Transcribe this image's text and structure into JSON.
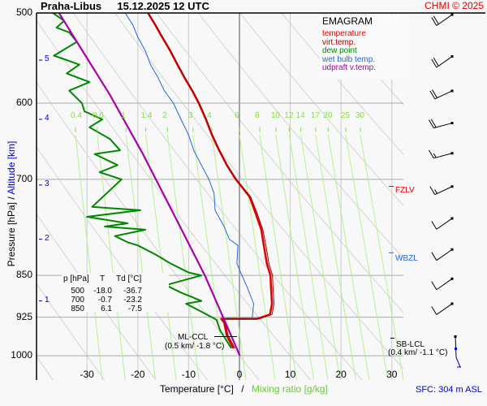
{
  "header": {
    "station": "Praha-Libus",
    "datetime": "15.12.2025 12 UTC",
    "copyright": "CHMI © 2025"
  },
  "legend": {
    "title": "EMAGRAM",
    "items": [
      {
        "label": "temperature",
        "color": "#e00000"
      },
      {
        "label": "virt.temp.",
        "color": "#990000"
      },
      {
        "label": "dew point",
        "color": "#008800"
      },
      {
        "label": "wet bulb temp.",
        "color": "#2266dd"
      },
      {
        "label": "udpraft v.temp.",
        "color": "#aa00aa"
      }
    ]
  },
  "axes": {
    "y_label_pressure": "Pressure [hPa]",
    "y_label_sep": "/",
    "y_label_altitude": "Altitude [km]",
    "x_label_temp": "Temperature [°C]",
    "x_label_sep": "/",
    "x_label_mixing": "Mixing ratio [g/kg]",
    "sfc_label": "SFC: 304 m ASL"
  },
  "table": {
    "headers": [
      "p [hPa]",
      "T",
      "Td [°C]"
    ],
    "rows": [
      [
        "500",
        "-18.0",
        "-36.7"
      ],
      [
        "700",
        "-0.7",
        "-23.2"
      ],
      [
        "850",
        "6.1",
        "-7.5"
      ]
    ]
  },
  "annotations": {
    "ml_ccl_name": "ML-CCL",
    "ml_ccl_value": "(0.5 km/ -1.8 °C)",
    "sb_lcl_name": "SB-LCL",
    "sb_lcl_value": "(0.4 km/ -1.1 °C)",
    "fzlv": "FZLV",
    "wbzl": "WBZL"
  },
  "chart_data": {
    "type": "line",
    "title": "Praha-Libus 15.12.2025 12 UTC",
    "subtitle": "EMAGRAM",
    "xlabel": "Temperature [°C] / Mixing ratio [g/kg]",
    "ylabel": "Pressure [hPa] / Altitude [km]",
    "xlim": [
      -38,
      32
    ],
    "ylim": [
      1050,
      500
    ],
    "y_scale": "log",
    "x_ticks": [
      "-30",
      "-20",
      "-10",
      "0",
      "10",
      "20",
      "30"
    ],
    "y_ticks": [
      "500",
      "600",
      "700",
      "850",
      "925",
      "1000"
    ],
    "altitude_ticks_km": [
      {
        "km": "1",
        "p": 895
      },
      {
        "km": "2",
        "p": 790
      },
      {
        "km": "3",
        "p": 708
      },
      {
        "km": "4",
        "p": 620
      },
      {
        "km": "5",
        "p": 550
      }
    ],
    "mixing_ratio_labels": [
      "0.4",
      "0.6",
      "1",
      "1.4",
      "2",
      "3",
      "4",
      "6",
      "8",
      "10",
      "12",
      "14",
      "17",
      "20",
      "25",
      "30"
    ],
    "grid": true,
    "series": [
      {
        "name": "temperature",
        "color": "#e00000",
        "points": [
          [
            -1.2,
            985
          ],
          [
            -2.5,
            960
          ],
          [
            -3.0,
            935
          ],
          [
            -3.6,
            928
          ],
          [
            3.5,
            928
          ],
          [
            6.0,
            920
          ],
          [
            6.4,
            900
          ],
          [
            6.2,
            870
          ],
          [
            6.1,
            850
          ],
          [
            5.4,
            830
          ],
          [
            4.8,
            800
          ],
          [
            4.3,
            775
          ],
          [
            3.2,
            750
          ],
          [
            2.0,
            725
          ],
          [
            -0.7,
            700
          ],
          [
            -2.5,
            680
          ],
          [
            -4.0,
            660
          ],
          [
            -5.4,
            640
          ],
          [
            -6.6,
            620
          ],
          [
            -8.0,
            600
          ],
          [
            -9.3,
            585
          ],
          [
            -10.8,
            570
          ],
          [
            -12.2,
            555
          ],
          [
            -13.6,
            540
          ],
          [
            -15.2,
            525
          ],
          [
            -16.6,
            512
          ],
          [
            -18.0,
            500
          ]
        ]
      },
      {
        "name": "virt.temp.",
        "color": "#990000",
        "points": [
          [
            -0.9,
            985
          ],
          [
            -2.2,
            960
          ],
          [
            -2.8,
            935
          ],
          [
            -3.3,
            928
          ],
          [
            3.9,
            928
          ],
          [
            6.4,
            920
          ],
          [
            6.8,
            900
          ],
          [
            6.6,
            870
          ],
          [
            6.5,
            850
          ],
          [
            5.8,
            830
          ],
          [
            5.2,
            800
          ],
          [
            4.6,
            775
          ],
          [
            3.5,
            750
          ],
          [
            2.2,
            725
          ],
          [
            -0.6,
            700
          ],
          [
            -2.4,
            680
          ],
          [
            -3.9,
            660
          ],
          [
            -5.3,
            640
          ],
          [
            -6.5,
            620
          ],
          [
            -7.9,
            600
          ],
          [
            -9.2,
            585
          ],
          [
            -10.7,
            570
          ],
          [
            -12.1,
            555
          ],
          [
            -13.5,
            540
          ],
          [
            -15.1,
            525
          ],
          [
            -16.5,
            512
          ],
          [
            -18.0,
            500
          ]
        ]
      },
      {
        "name": "dew point",
        "color": "#008800",
        "points": [
          [
            -1.6,
            985
          ],
          [
            -3.8,
            950
          ],
          [
            -4.5,
            930
          ],
          [
            -6.0,
            922
          ],
          [
            -10.5,
            900
          ],
          [
            -7.5,
            895
          ],
          [
            -11.5,
            880
          ],
          [
            -14.5,
            867
          ],
          [
            -7.5,
            850
          ],
          [
            -10.0,
            845
          ],
          [
            -13.5,
            830
          ],
          [
            -16.5,
            815
          ],
          [
            -20.0,
            800
          ],
          [
            -22.0,
            795
          ],
          [
            -24.5,
            785
          ],
          [
            -18.5,
            775
          ],
          [
            -26.5,
            770
          ],
          [
            -22.0,
            765
          ],
          [
            -30.0,
            755
          ],
          [
            -19.5,
            745
          ],
          [
            -29.0,
            740
          ],
          [
            -23.2,
            700
          ],
          [
            -27.5,
            690
          ],
          [
            -24.0,
            680
          ],
          [
            -28.5,
            665
          ],
          [
            -23.5,
            660
          ],
          [
            -25.5,
            645
          ],
          [
            -29.5,
            630
          ],
          [
            -27.0,
            620
          ],
          [
            -30.5,
            610
          ],
          [
            -31.0,
            600
          ],
          [
            -33.5,
            585
          ],
          [
            -29.5,
            575
          ],
          [
            -34.0,
            565
          ],
          [
            -31.5,
            555
          ],
          [
            -36.5,
            545
          ],
          [
            -35.0,
            540
          ],
          [
            -32.0,
            530
          ],
          [
            -33.5,
            520
          ],
          [
            -36.0,
            515
          ],
          [
            -34.5,
            508
          ],
          [
            -36.7,
            500
          ]
        ]
      },
      {
        "name": "wet bulb temp.",
        "color": "#2266dd",
        "points": [
          [
            2.5,
            928
          ],
          [
            2.8,
            900
          ],
          [
            1.5,
            870
          ],
          [
            0.5,
            850
          ],
          [
            -0.5,
            830
          ],
          [
            -0.3,
            800
          ],
          [
            -2.0,
            790
          ],
          [
            -3.0,
            770
          ],
          [
            -4.8,
            745
          ],
          [
            -5.0,
            720
          ],
          [
            -6.0,
            700
          ],
          [
            -7.5,
            680
          ],
          [
            -9.0,
            660
          ],
          [
            -10.0,
            640
          ],
          [
            -11.5,
            620
          ],
          [
            -13.0,
            600
          ],
          [
            -14.8,
            585
          ],
          [
            -16.0,
            570
          ],
          [
            -17.5,
            555
          ],
          [
            -18.5,
            540
          ],
          [
            -20.0,
            525
          ],
          [
            -21.0,
            512
          ],
          [
            -22.5,
            500
          ]
        ]
      },
      {
        "name": "udpraft v.temp.",
        "color": "#aa00aa",
        "points": [
          [
            0.1,
            1000
          ],
          [
            -6.8,
            850
          ],
          [
            -13.0,
            750
          ],
          [
            -19.0,
            665
          ],
          [
            -25.5,
            590
          ],
          [
            -32.0,
            530
          ],
          [
            -35.5,
            500
          ]
        ]
      }
    ],
    "levels": [
      {
        "name": "FZLV",
        "p": 710,
        "color": "#e00000"
      },
      {
        "name": "WBZL",
        "p": 812,
        "color": "#2266dd"
      },
      {
        "name": "ML-CCL",
        "p": 962,
        "t": -1.8
      },
      {
        "name": "SB-LCL",
        "p": 963,
        "t": -1.1
      }
    ],
    "wind_barbs": [
      {
        "p": 510,
        "dir_deg": 235,
        "speed_kt": 20
      },
      {
        "p": 555,
        "dir_deg": 235,
        "speed_kt": 20
      },
      {
        "p": 595,
        "dir_deg": 245,
        "speed_kt": 20
      },
      {
        "p": 635,
        "dir_deg": 255,
        "speed_kt": 20
      },
      {
        "p": 675,
        "dir_deg": 255,
        "speed_kt": 15
      },
      {
        "p": 722,
        "dir_deg": 245,
        "speed_kt": 15
      },
      {
        "p": 770,
        "dir_deg": 235,
        "speed_kt": 10
      },
      {
        "p": 820,
        "dir_deg": 235,
        "speed_kt": 10
      },
      {
        "p": 870,
        "dir_deg": 235,
        "speed_kt": 10
      },
      {
        "p": 915,
        "dir_deg": 235,
        "speed_kt": 10
      }
    ]
  }
}
